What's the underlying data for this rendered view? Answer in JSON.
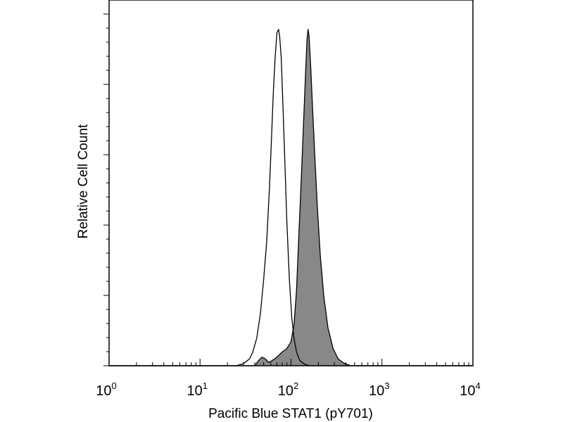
{
  "chart_data": {
    "type": "area",
    "xlabel": "Pacific Blue STAT1 (pY701)",
    "ylabel": "Relative Cell Count",
    "x_scale": "log",
    "xlim": [
      1,
      10000
    ],
    "ylim": [
      0,
      100
    ],
    "x_ticks": [
      {
        "base": "10",
        "exp": "0"
      },
      {
        "base": "10",
        "exp": "1"
      },
      {
        "base": "10",
        "exp": "2"
      },
      {
        "base": "10",
        "exp": "3"
      },
      {
        "base": "10",
        "exp": "4"
      }
    ],
    "grid": false,
    "legend": "none",
    "series": [
      {
        "style": "outline",
        "color": "#000000",
        "points": [
          [
            1,
            0
          ],
          [
            25,
            0
          ],
          [
            30,
            0.6
          ],
          [
            35,
            2
          ],
          [
            38,
            4
          ],
          [
            42,
            8
          ],
          [
            46,
            15
          ],
          [
            50,
            25
          ],
          [
            54,
            36
          ],
          [
            58,
            52
          ],
          [
            61,
            66
          ],
          [
            64,
            80
          ],
          [
            67,
            90
          ],
          [
            70,
            97
          ],
          [
            73,
            98
          ],
          [
            75,
            96
          ],
          [
            78,
            90
          ],
          [
            81,
            78
          ],
          [
            85,
            62
          ],
          [
            90,
            42
          ],
          [
            96,
            25
          ],
          [
            102,
            14
          ],
          [
            108,
            8
          ],
          [
            115,
            4
          ],
          [
            125,
            1.5
          ],
          [
            140,
            0.5
          ],
          [
            160,
            0
          ],
          [
            10000,
            0
          ]
        ]
      },
      {
        "style": "filled",
        "color": "#888888",
        "points": [
          [
            1,
            0
          ],
          [
            40,
            0
          ],
          [
            44,
            1.5
          ],
          [
            48,
            2.5
          ],
          [
            52,
            2
          ],
          [
            57,
            1
          ],
          [
            62,
            1.5
          ],
          [
            70,
            2.5
          ],
          [
            80,
            4
          ],
          [
            90,
            5
          ],
          [
            100,
            7
          ],
          [
            108,
            12
          ],
          [
            115,
            22
          ],
          [
            122,
            38
          ],
          [
            130,
            55
          ],
          [
            138,
            72
          ],
          [
            145,
            86
          ],
          [
            150,
            95
          ],
          [
            154,
            98
          ],
          [
            158,
            96
          ],
          [
            164,
            88
          ],
          [
            172,
            76
          ],
          [
            182,
            62
          ],
          [
            195,
            46
          ],
          [
            210,
            32
          ],
          [
            230,
            20
          ],
          [
            255,
            11
          ],
          [
            290,
            5
          ],
          [
            330,
            2
          ],
          [
            380,
            0.8
          ],
          [
            450,
            0
          ],
          [
            10000,
            0
          ]
        ]
      }
    ]
  }
}
